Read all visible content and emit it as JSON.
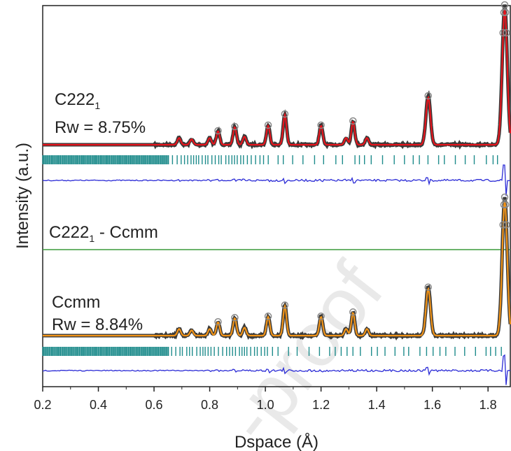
{
  "chart_data": {
    "type": "line",
    "xlabel": "Dspace (Å)",
    "ylabel": "Intensity (a.u.)",
    "xlim": [
      0.2,
      1.88
    ],
    "x_ticks": [
      "0.2",
      "0.4",
      "0.6",
      "0.8",
      "1.0",
      "1.2",
      "1.4",
      "1.6",
      "1.8"
    ],
    "peaks": [
      {
        "d": 0.69,
        "top": 0.05
      },
      {
        "d": 0.735,
        "top": 0.04
      },
      {
        "d": 0.8,
        "top": 0.05
      },
      {
        "d": 0.83,
        "top": 0.1
      },
      {
        "d": 0.89,
        "top": 0.13
      },
      {
        "d": 0.925,
        "top": 0.06
      },
      {
        "d": 1.01,
        "top": 0.14
      },
      {
        "d": 1.07,
        "top": 0.22
      },
      {
        "d": 1.2,
        "top": 0.14
      },
      {
        "d": 1.29,
        "top": 0.05
      },
      {
        "d": 1.315,
        "top": 0.17
      },
      {
        "d": 1.365,
        "top": 0.05
      },
      {
        "d": 1.585,
        "top": 0.35
      },
      {
        "d": 1.86,
        "top": 1.0
      }
    ],
    "panels": [
      {
        "phase_label": "C222",
        "phase_subscript": "1",
        "rw_label": "Rw = 8.75%",
        "calc_color": "#e8141c"
      },
      {
        "phase_label": "Ccmm",
        "phase_subscript": "",
        "rw_label": "Rw = 8.84%",
        "calc_color": "#f29417"
      }
    ],
    "difference_label_a": "C222",
    "difference_label_sub": "1",
    "difference_label_b": " - Ccmm",
    "watermark": "-proof",
    "colors": {
      "observed": "#3a3a3a",
      "tick_marks": "#1f8c8c",
      "difference": "#2b2bd6",
      "comparison_line": "#3a9a3a"
    }
  }
}
